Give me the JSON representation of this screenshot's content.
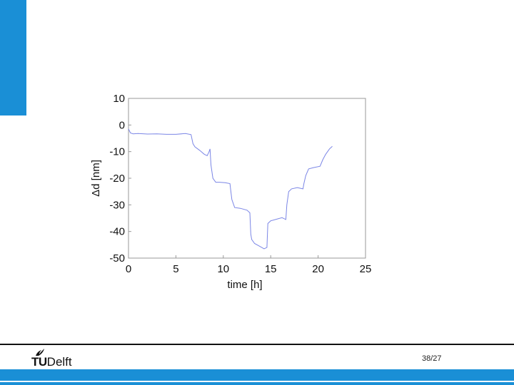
{
  "colors": {
    "accent": "#1a8fd6",
    "series": "#7b86e6",
    "axis": "#999999"
  },
  "icons": {
    "logo_mark": "tudelft-flame-icon"
  },
  "footer": {
    "logo_tu": "TU",
    "logo_delft": "Delft",
    "page_number": "38/27"
  },
  "chart_data": {
    "type": "line",
    "title": "",
    "xlabel": "time [h]",
    "ylabel": "Δd [nm]",
    "xlim": [
      0,
      25
    ],
    "ylim": [
      -50,
      10
    ],
    "xticks": [
      0,
      5,
      10,
      15,
      20,
      25
    ],
    "yticks": [
      10,
      0,
      -10,
      -20,
      -30,
      -40,
      -50
    ],
    "grid": false,
    "series": [
      {
        "x": [
          0,
          0.2,
          0.5,
          1,
          2,
          3,
          4,
          5,
          6,
          6.6,
          6.8,
          7,
          7.5,
          8,
          8.3,
          8.5,
          8.6,
          8.7,
          8.9,
          9.2,
          9.6,
          10.2,
          10.7,
          10.8,
          10.9,
          11.2,
          11.8,
          12.5,
          12.8,
          12.9,
          13,
          13.3,
          13.8,
          14.3,
          14.6,
          14.7,
          15,
          15.5,
          16.2,
          16.6,
          16.7,
          16.9,
          17.2,
          17.8,
          18.4,
          18.5,
          18.7,
          19,
          19.5,
          20.2,
          20.5,
          20.8,
          21.2,
          21.5
        ],
        "y": [
          -1.5,
          -3,
          -3.3,
          -3.2,
          -3.4,
          -3.3,
          -3.5,
          -3.5,
          -3.2,
          -3.6,
          -7,
          -8.2,
          -9.5,
          -11,
          -11.5,
          -10,
          -9,
          -15,
          -20,
          -21.5,
          -21.5,
          -21.7,
          -22,
          -25,
          -28,
          -31,
          -31.3,
          -32,
          -33,
          -41,
          -43,
          -44.5,
          -45.5,
          -46.5,
          -46,
          -37,
          -36,
          -35.5,
          -34.8,
          -35.5,
          -30,
          -25,
          -24,
          -23.5,
          -24,
          -22,
          -19,
          -16.5,
          -16,
          -15.5,
          -13,
          -11,
          -9,
          -8
        ]
      }
    ]
  }
}
